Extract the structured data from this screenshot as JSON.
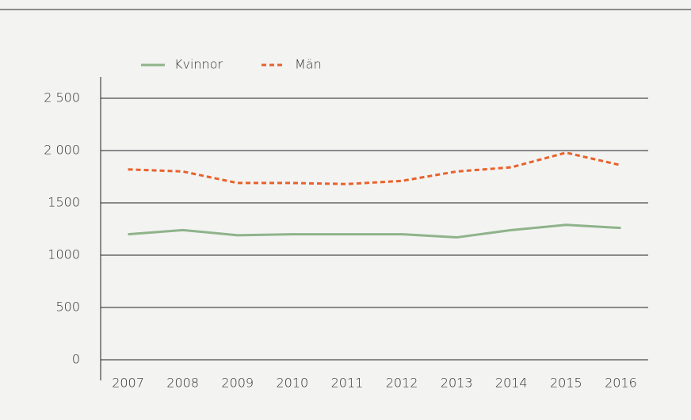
{
  "chart_data": {
    "type": "line",
    "categories": [
      "2007",
      "2008",
      "2009",
      "2010",
      "2011",
      "2012",
      "2013",
      "2014",
      "2015",
      "2016"
    ],
    "series": [
      {
        "name": "Kvinnor",
        "color": "#8fb38a",
        "dash": false,
        "values": [
          1200,
          1240,
          1190,
          1200,
          1200,
          1200,
          1170,
          1240,
          1290,
          1260
        ]
      },
      {
        "name": "Män",
        "color": "#e8622a",
        "dash": true,
        "values": [
          1820,
          1800,
          1690,
          1690,
          1680,
          1710,
          1800,
          1840,
          1980,
          1860
        ]
      }
    ],
    "ylim": [
      0,
      2500
    ],
    "yticks": [
      0,
      500,
      1000,
      1500,
      {
        "value": 2000,
        "label": "2 000"
      },
      {
        "value": 2500,
        "label": "2 500"
      }
    ],
    "grid": true,
    "legend": "top-left"
  }
}
